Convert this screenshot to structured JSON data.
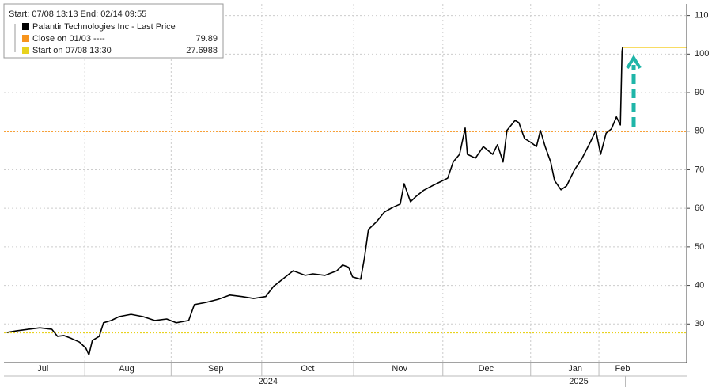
{
  "chart_data": {
    "type": "line",
    "legend_header": "Start: 07/08 13:13 End: 02/14 09:55",
    "x": [
      0,
      3.4,
      7.7,
      11.9,
      16.2,
      18.2,
      20.5,
      23.3,
      26.1,
      28.4,
      29.5,
      30.7,
      33.2,
      34.7,
      37.5,
      40.3,
      44.6,
      48.9,
      53.1,
      57.4,
      60.8,
      65.3,
      67.3,
      71.6,
      75.9,
      80.1,
      84.4,
      88.6,
      92.9,
      95.7,
      100,
      102.8,
      107.1,
      109.9,
      114.2,
      118.5,
      120.5,
      122.7,
      124.1,
      127,
      128.4,
      129.8,
      132.7,
      135.5,
      138.4,
      141.2,
      142.6,
      144.9,
      146.9,
      149.7,
      152.6,
      155.4,
      158.2,
      160.2,
      162.5,
      164.5,
      165.3,
      168.2,
      171,
      174.4,
      176.1,
      178.1,
      179.5,
      182.4,
      183.8,
      185.8,
      188.1,
      190.1,
      191.5,
      193.2,
      195.2,
      196.6,
      198.9,
      200.9,
      203.7,
      206.5,
      209.4,
      211.4,
      213.1,
      215.1,
      217,
      218.8,
      220.2,
      220.8,
      221
    ],
    "series": [
      {
        "name": "Palantir Technologies Inc - Last Price",
        "color": "#000000",
        "values": [
          27.8,
          28.2,
          28.6,
          29,
          28.6,
          26.8,
          27,
          26.2,
          25.3,
          23.7,
          22,
          25.7,
          26.8,
          30.3,
          30.9,
          31.9,
          32.5,
          31.9,
          30.9,
          31.3,
          30.3,
          30.9,
          35,
          35.6,
          36.4,
          37.5,
          37.1,
          36.6,
          37.1,
          39.7,
          42.2,
          43.8,
          42.6,
          43,
          42.6,
          43.8,
          45.3,
          44.7,
          42.2,
          41.6,
          47.3,
          54.5,
          56.5,
          59,
          60.2,
          61.1,
          66.4,
          61.7,
          63.1,
          64.7,
          65.8,
          66.8,
          67.8,
          72,
          74,
          80.8,
          74,
          73,
          76,
          74,
          76.5,
          72,
          80.2,
          82.8,
          82.2,
          78.1,
          77.1,
          76,
          80.2,
          76,
          72,
          67.2,
          64.8,
          65.8,
          69.9,
          73,
          77.1,
          80.2,
          74,
          79.5,
          80.6,
          83.7,
          81.6,
          100.7,
          101.7
        ]
      }
    ],
    "reference_lines": [
      {
        "name": "Close on 01/03 ----",
        "value": 79.89,
        "color": "#f7941d"
      },
      {
        "name": "Start on 07/08 13:30",
        "value": 27.6988,
        "color": "#e8d21d"
      }
    ],
    "xlim": [
      -1,
      244
    ],
    "xticks": [
      {
        "value": 13,
        "label": "Jul"
      },
      {
        "value": 43,
        "label": "Aug"
      },
      {
        "value": 75,
        "label": "Sep"
      },
      {
        "value": 108,
        "label": "Oct"
      },
      {
        "value": 141,
        "label": "Nov"
      },
      {
        "value": 172,
        "label": "Dec"
      },
      {
        "value": 204,
        "label": "Jan"
      },
      {
        "value": 221,
        "label": "Feb"
      }
    ],
    "x_groups": [
      {
        "label": "2024",
        "from": -1,
        "to": 188.5
      },
      {
        "label": "2025",
        "from": 188.5,
        "to": 222
      }
    ],
    "ylim": [
      20,
      113
    ],
    "yticks": [
      30,
      40,
      50,
      60,
      70,
      80,
      90,
      100,
      110
    ],
    "grid": true
  }
}
